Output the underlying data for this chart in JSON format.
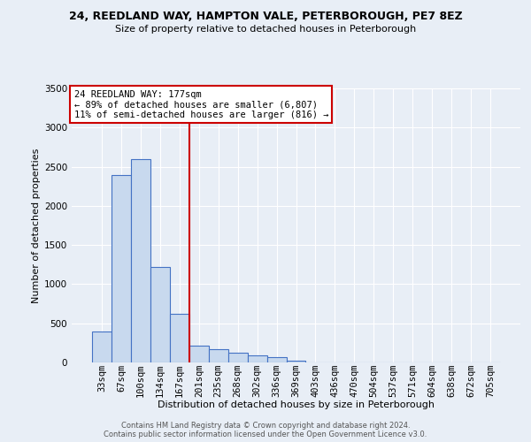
{
  "title_line1": "24, REEDLAND WAY, HAMPTON VALE, PETERBOROUGH, PE7 8EZ",
  "title_line2": "Size of property relative to detached houses in Peterborough",
  "xlabel": "Distribution of detached houses by size in Peterborough",
  "ylabel": "Number of detached properties",
  "bar_labels": [
    "33sqm",
    "67sqm",
    "100sqm",
    "134sqm",
    "167sqm",
    "201sqm",
    "235sqm",
    "268sqm",
    "302sqm",
    "336sqm",
    "369sqm",
    "403sqm",
    "436sqm",
    "470sqm",
    "504sqm",
    "537sqm",
    "571sqm",
    "604sqm",
    "638sqm",
    "672sqm",
    "705sqm"
  ],
  "bar_heights": [
    390,
    2390,
    2600,
    1220,
    620,
    220,
    165,
    125,
    90,
    65,
    25,
    0,
    0,
    0,
    0,
    0,
    0,
    0,
    0,
    0,
    0
  ],
  "bar_color": "#c8d9ee",
  "bar_edge_color": "#4472c4",
  "red_line_x": 4.5,
  "ylim": [
    0,
    3500
  ],
  "yticks": [
    0,
    500,
    1000,
    1500,
    2000,
    2500,
    3000,
    3500
  ],
  "annotation_text": "24 REEDLAND WAY: 177sqm\n← 89% of detached houses are smaller (6,807)\n11% of semi-detached houses are larger (816) →",
  "annotation_box_color": "#ffffff",
  "annotation_box_edge": "#cc0000",
  "vline_color": "#cc0000",
  "bg_color": "#e8eef6",
  "footer1": "Contains HM Land Registry data © Crown copyright and database right 2024.",
  "footer2": "Contains public sector information licensed under the Open Government Licence v3.0.",
  "grid_color": "#ffffff",
  "title1_fontsize": 9,
  "title2_fontsize": 8,
  "xlabel_fontsize": 8,
  "ylabel_fontsize": 8,
  "tick_fontsize": 7.5,
  "annotation_fontsize": 7.5,
  "footer_fontsize": 6
}
